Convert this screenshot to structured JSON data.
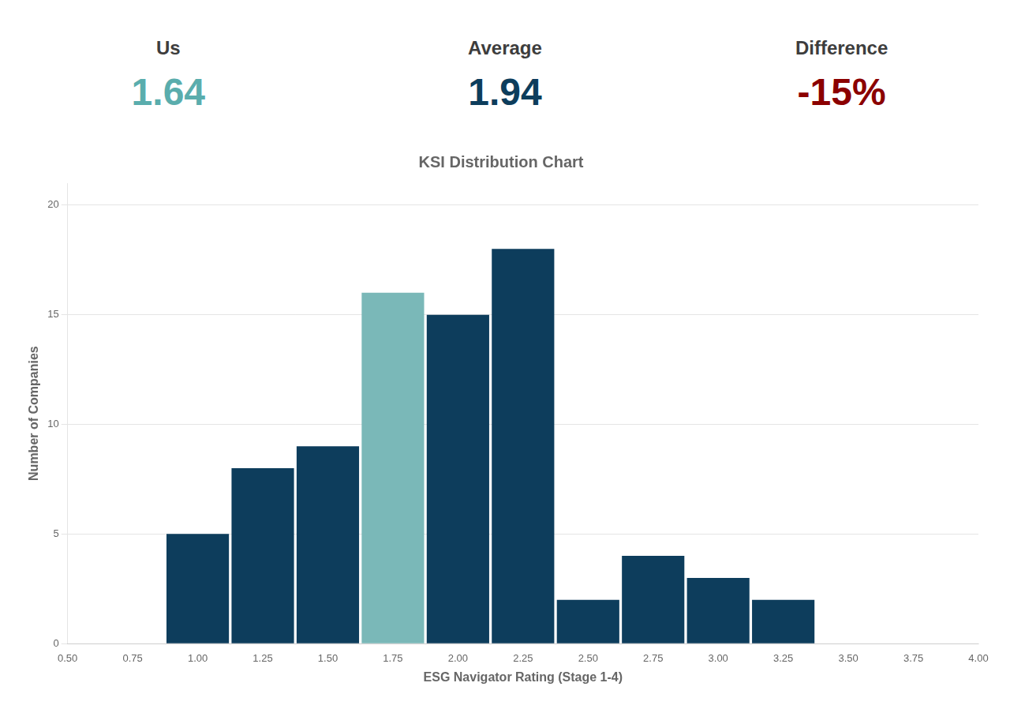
{
  "chart_data": {
    "type": "bar",
    "title": "KSI Distribution Chart",
    "x_label": "ESG Navigator Rating (Stage 1-4)",
    "y_label": "Number of Companies",
    "x": [
      1.0,
      1.25,
      1.5,
      1.75,
      2.0,
      2.25,
      2.5,
      2.75,
      3.0,
      3.25
    ],
    "values": [
      5,
      8,
      9,
      16,
      15,
      18,
      2,
      4,
      3,
      2
    ],
    "colors": [
      "#0d3d5c",
      "#0d3d5c",
      "#0d3d5c",
      "#7ab8b8",
      "#0d3d5c",
      "#0d3d5c",
      "#0d3d5c",
      "#0d3d5c",
      "#0d3d5c",
      "#0d3d5c"
    ],
    "xlim": [
      0.5,
      4.0
    ],
    "xticks": [
      {
        "value": 0.5,
        "label": "0.50"
      },
      {
        "value": 0.75,
        "label": "0.75"
      },
      {
        "value": 1.0,
        "label": "1.00"
      },
      {
        "value": 1.25,
        "label": "1.25"
      },
      {
        "value": 1.5,
        "label": "1.50"
      },
      {
        "value": 1.75,
        "label": "1.75"
      },
      {
        "value": 2.0,
        "label": "2.00"
      },
      {
        "value": 2.25,
        "label": "2.25"
      },
      {
        "value": 2.5,
        "label": "2.50"
      },
      {
        "value": 2.75,
        "label": "2.75"
      },
      {
        "value": 3.0,
        "label": "3.00"
      },
      {
        "value": 3.25,
        "label": "3.25"
      },
      {
        "value": 3.5,
        "label": "3.50"
      },
      {
        "value": 3.75,
        "label": "3.75"
      },
      {
        "value": 4.0,
        "label": "4.00"
      }
    ],
    "ylim": [
      0,
      21
    ],
    "yticks": [
      0,
      5,
      10,
      15,
      20
    ],
    "grid": true,
    "annotations": [
      {
        "label": "Us",
        "text": "1.64",
        "color": "#5aadad"
      },
      {
        "label": "Average",
        "text": "1.94",
        "color": "#0d3d5c"
      },
      {
        "label": "Difference",
        "text": "-15%",
        "color": "#8b0000"
      }
    ]
  }
}
